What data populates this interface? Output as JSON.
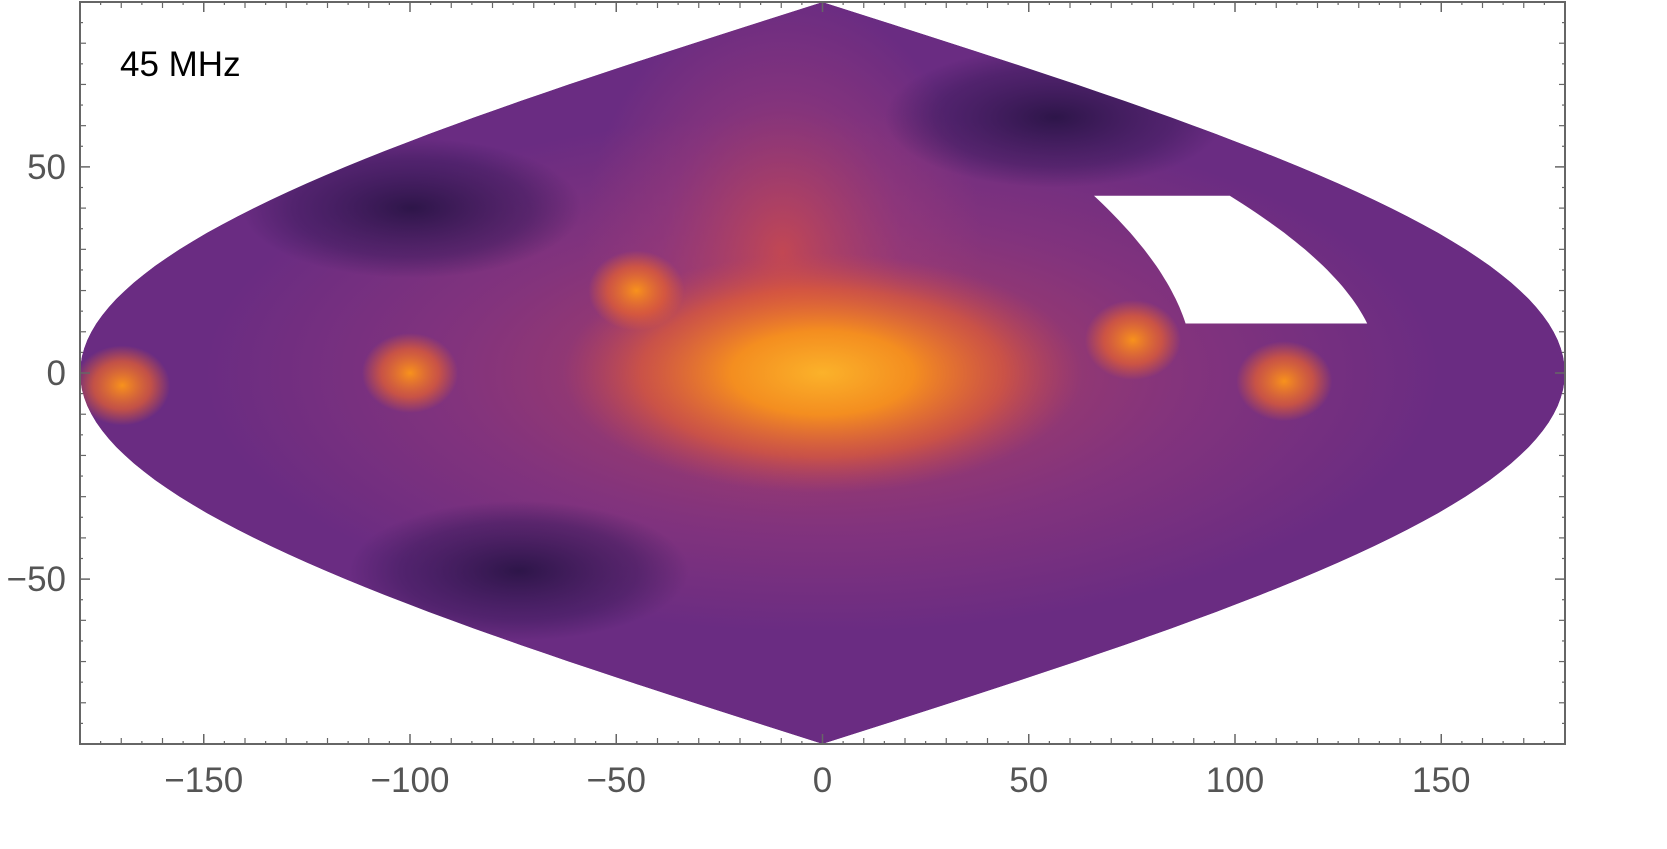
{
  "chart_data": {
    "type": "heatmap",
    "title": "",
    "annotation": "45 MHz",
    "projection": "sinusoidal",
    "xlabel": "",
    "ylabel": "",
    "xlim": [
      -180,
      180
    ],
    "ylim": [
      -90,
      90
    ],
    "x_ticks": [
      -150,
      -100,
      -50,
      0,
      50,
      100,
      150
    ],
    "x_tick_labels": [
      "−150",
      "−100",
      "−50",
      "0",
      "50",
      "100",
      "150"
    ],
    "y_ticks": [
      -50,
      0,
      50
    ],
    "y_tick_labels": [
      "−50",
      "0",
      "50"
    ],
    "colors": {
      "frame": "#666666",
      "colormap": [
        "#2a1446",
        "#4a2270",
        "#6a2c82",
        "#9a3a78",
        "#c8494f",
        "#e8612e",
        "#f8921c",
        "#fbb22a"
      ],
      "masked_region": "#ffffff"
    },
    "intensity_features": [
      {
        "lon": 0,
        "lat": 0,
        "value": 1.0
      },
      {
        "lon": -100,
        "lat": 0,
        "value": 0.8
      },
      {
        "lon": -48,
        "lat": 20,
        "value": 0.75
      },
      {
        "lon": 76,
        "lat": 8,
        "value": 0.75
      },
      {
        "lon": 112,
        "lat": -2,
        "value": 0.75
      },
      {
        "lon": -170,
        "lat": -3,
        "value": 0.62
      },
      {
        "lon": -130,
        "lat": 40,
        "value": 0.05
      },
      {
        "lon": -110,
        "lat": -48,
        "value": 0.05
      },
      {
        "lon": 120,
        "lat": 62,
        "value": 0.15
      }
    ],
    "masked_region": {
      "lon_range": [
        90,
        135
      ],
      "lat_range": [
        12,
        43
      ]
    }
  }
}
